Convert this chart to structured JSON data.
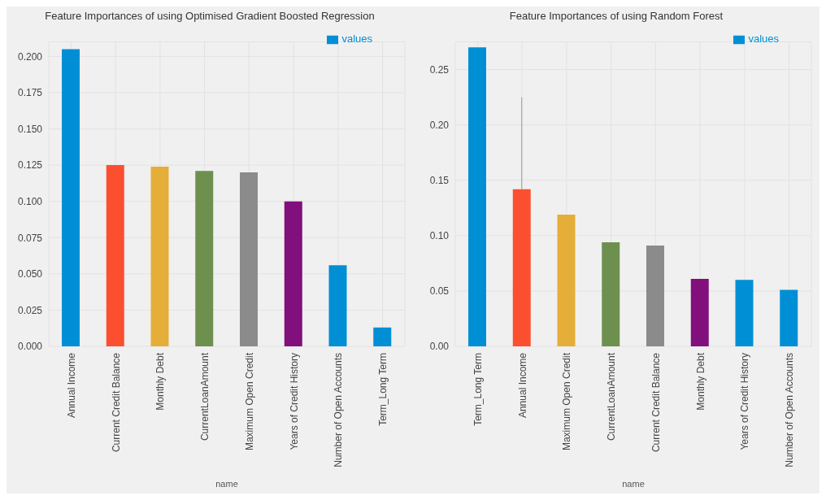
{
  "chart_data": [
    {
      "type": "bar",
      "title": "Feature Importances of using Optimised Gradient Boosted Regression",
      "xlabel": "name",
      "categories": [
        "Annual Income",
        "Current Credit Balance",
        "Monthly Debt",
        "CurrentLoanAmount",
        "Maximum Open Credit",
        "Years of Credit History",
        "Number of Open Accounts",
        "Term_Long Term"
      ],
      "series": [
        {
          "name": "values",
          "values": [
            0.205,
            0.125,
            0.124,
            0.121,
            0.12,
            0.1,
            0.056,
            0.013
          ],
          "colors": [
            "#008fd5",
            "#fc4f30",
            "#e5ae38",
            "#6d904f",
            "#8b8b8b",
            "#810f7c",
            "#008fd5",
            "#008fd5"
          ]
        }
      ],
      "ylim": [
        0,
        0.21
      ],
      "yticks": [
        {
          "value": 0,
          "label": "0.000"
        },
        {
          "value": 0.025,
          "label": "0.025"
        },
        {
          "value": 0.05,
          "label": "0.050"
        },
        {
          "value": 0.075,
          "label": "0.075"
        },
        {
          "value": 0.1,
          "label": "0.100"
        },
        {
          "value": 0.125,
          "label": "0.125"
        },
        {
          "value": 0.15,
          "label": "0.150"
        },
        {
          "value": 0.175,
          "label": "0.175"
        },
        {
          "value": 0.2,
          "label": "0.200"
        }
      ],
      "grid": true,
      "legend": "top right"
    },
    {
      "type": "bar",
      "title": "Feature Importances of using Random Forest",
      "xlabel": "name",
      "categories": [
        "Term_Long Term",
        "Annual Income",
        "Maximum Open Credit",
        "CurrentLoanAmount",
        "Current Credit Balance",
        "Monthly Debt",
        "Years of Credit History",
        "Number of Open Accounts"
      ],
      "series": [
        {
          "name": "values",
          "values": [
            0.27,
            0.142,
            0.119,
            0.094,
            0.091,
            0.061,
            0.06,
            0.051
          ],
          "errors": [
            null,
            [
              0.142,
              0.225
            ],
            null,
            null,
            null,
            null,
            null,
            null
          ],
          "colors": [
            "#008fd5",
            "#fc4f30",
            "#e5ae38",
            "#6d904f",
            "#8b8b8b",
            "#810f7c",
            "#008fd5",
            "#008fd5"
          ]
        }
      ],
      "ylim": [
        0,
        0.275
      ],
      "yticks": [
        {
          "value": 0,
          "label": "0.00"
        },
        {
          "value": 0.05,
          "label": "0.05"
        },
        {
          "value": 0.1,
          "label": "0.10"
        },
        {
          "value": 0.15,
          "label": "0.15"
        },
        {
          "value": 0.2,
          "label": "0.20"
        },
        {
          "value": 0.25,
          "label": "0.25"
        }
      ],
      "grid": true,
      "legend": "top right"
    }
  ]
}
